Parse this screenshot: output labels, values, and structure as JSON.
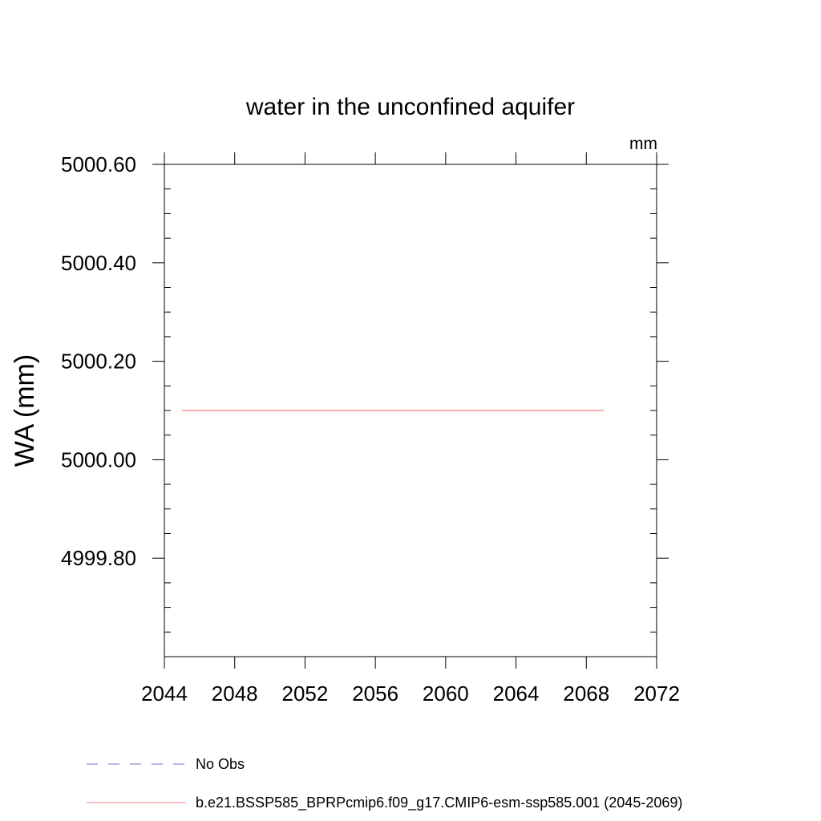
{
  "chart_data": {
    "type": "line",
    "title": "water in the unconfined aquifer",
    "units": "mm",
    "ylabel": "WA  (mm)",
    "xlabel": "",
    "xlim": [
      2044,
      2072
    ],
    "ylim": [
      4999.6,
      5000.6
    ],
    "x_ticks": [
      2044,
      2048,
      2052,
      2056,
      2060,
      2064,
      2068,
      2072
    ],
    "x_tick_labels": [
      "2044",
      "2048",
      "2052",
      "2056",
      "2060",
      "2064",
      "2068",
      "2072"
    ],
    "y_ticks": [
      4999.8,
      5000.0,
      5000.2,
      5000.4,
      5000.6
    ],
    "y_tick_labels": [
      "4999.80",
      "5000.00",
      "5000.20",
      "5000.40",
      "5000.60"
    ],
    "grid": false,
    "legend_position": "bottom",
    "series": [
      {
        "name": "No Obs",
        "color": "#7b6fbf",
        "dash": "dashed",
        "x": [],
        "y": []
      },
      {
        "name": "b.e21.BSSP585_BPRPcmip6.f09_g17.CMIP6-esm-ssp585.001 (2045-2069)",
        "color": "#f08080",
        "dash": "solid",
        "x": [
          2045,
          2069
        ],
        "y": [
          5000.1,
          5000.1
        ]
      }
    ]
  }
}
